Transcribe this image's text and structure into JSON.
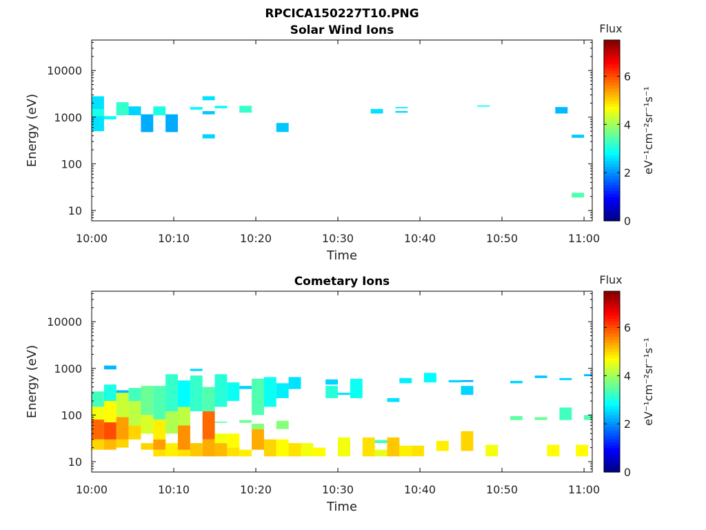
{
  "figure": {
    "title": "RPCICA150227T10.PNG"
  },
  "colorbar": {
    "title": "Flux",
    "label": "eV⁻¹cm⁻²sr⁻¹s⁻¹",
    "ticks": [
      "0",
      "2",
      "4",
      "6"
    ],
    "range": [
      0,
      7.5
    ],
    "colormap": "jet"
  },
  "chart_data": [
    {
      "type": "heatmap",
      "title": "Solar Wind Ions",
      "xlabel": "Time",
      "ylabel": "Energy (eV)",
      "x_ticks": [
        "10:00",
        "10:10",
        "10:20",
        "10:30",
        "10:40",
        "10:50",
        "11:00"
      ],
      "y_ticks": [
        "10",
        "100",
        "1000",
        "10000"
      ],
      "xlim_minutes": [
        0,
        61
      ],
      "ylim": [
        6,
        45000
      ],
      "y_scale": "log",
      "cells": [
        [
          0,
          1.5,
          500,
          2800,
          2.6
        ],
        [
          0,
          1.5,
          1050,
          1500,
          3.0
        ],
        [
          1.5,
          3,
          900,
          1050,
          2.8
        ],
        [
          3,
          4.5,
          1100,
          2100,
          3.2
        ],
        [
          4.5,
          6,
          1100,
          1700,
          2.5
        ],
        [
          6,
          7.5,
          480,
          1150,
          2.2
        ],
        [
          7.5,
          9,
          1100,
          1700,
          3.0
        ],
        [
          9,
          10.5,
          480,
          1150,
          2.2
        ],
        [
          12,
          13.5,
          1450,
          1650,
          2.8
        ],
        [
          13.5,
          15,
          2300,
          2800,
          2.6
        ],
        [
          13.5,
          15,
          1150,
          1350,
          2.4
        ],
        [
          13.5,
          15,
          350,
          430,
          2.5
        ],
        [
          15,
          16.5,
          1550,
          1750,
          2.8
        ],
        [
          18,
          19.5,
          1250,
          1750,
          3.2
        ],
        [
          22.5,
          24,
          480,
          750,
          2.4
        ],
        [
          34,
          35.5,
          1200,
          1500,
          2.6
        ],
        [
          37,
          38.5,
          1550,
          1650,
          2.7
        ],
        [
          37,
          38.5,
          1250,
          1350,
          2.5
        ],
        [
          47,
          48.5,
          1680,
          1780,
          2.8
        ],
        [
          56.5,
          58,
          1200,
          1650,
          2.3
        ],
        [
          58.5,
          60,
          360,
          420,
          2.4
        ],
        [
          58.5,
          60,
          19,
          24,
          3.4
        ]
      ]
    },
    {
      "type": "heatmap",
      "title": "Cometary Ions",
      "xlabel": "Time",
      "ylabel": "Energy (eV)",
      "x_ticks": [
        "10:00",
        "10:10",
        "10:20",
        "10:30",
        "10:40",
        "10:50",
        "11:00"
      ],
      "y_ticks": [
        "10",
        "100",
        "1000",
        "10000"
      ],
      "xlim_minutes": [
        0,
        61
      ],
      "ylim": [
        6,
        45000
      ],
      "y_scale": "log",
      "cells": [
        [
          0,
          1.5,
          18,
          30,
          5.0
        ],
        [
          0,
          1.5,
          30,
          80,
          5.8
        ],
        [
          0,
          1.5,
          80,
          150,
          4.6
        ],
        [
          0,
          1.5,
          150,
          320,
          3.3
        ],
        [
          1.5,
          3,
          18,
          30,
          5.2
        ],
        [
          1.5,
          3,
          30,
          70,
          6.0
        ],
        [
          1.5,
          3,
          70,
          200,
          4.7
        ],
        [
          1.5,
          3,
          200,
          450,
          3.0
        ],
        [
          1.5,
          3,
          950,
          1150,
          2.3
        ],
        [
          3,
          4.5,
          20,
          30,
          5.0
        ],
        [
          3,
          4.5,
          30,
          90,
          5.4
        ],
        [
          3,
          4.5,
          90,
          300,
          4.3
        ],
        [
          3,
          4.5,
          300,
          340,
          2.3
        ],
        [
          4.5,
          6,
          30,
          60,
          5.0
        ],
        [
          4.5,
          6,
          60,
          200,
          4.2
        ],
        [
          4.5,
          6,
          200,
          380,
          3.3
        ],
        [
          6,
          7.5,
          18,
          25,
          5.0
        ],
        [
          6,
          7.5,
          40,
          100,
          4.4
        ],
        [
          6,
          7.5,
          100,
          420,
          3.6
        ],
        [
          7.5,
          9,
          13,
          18,
          4.9
        ],
        [
          7.5,
          9,
          18,
          30,
          5.4
        ],
        [
          7.5,
          9,
          30,
          80,
          4.8
        ],
        [
          7.5,
          9,
          80,
          420,
          3.4
        ],
        [
          9,
          10.5,
          13,
          25,
          4.8
        ],
        [
          9,
          10.5,
          40,
          120,
          4.1
        ],
        [
          9,
          10.5,
          120,
          750,
          3.2
        ],
        [
          10.5,
          12,
          13,
          18,
          4.9
        ],
        [
          10.5,
          12,
          18,
          60,
          5.5
        ],
        [
          10.5,
          12,
          60,
          150,
          4.2
        ],
        [
          10.5,
          12,
          150,
          550,
          2.8
        ],
        [
          12,
          13.5,
          13,
          25,
          5.1
        ],
        [
          12,
          13.5,
          120,
          700,
          3.2
        ],
        [
          12,
          13.5,
          880,
          980,
          2.5
        ],
        [
          13.5,
          15,
          13,
          30,
          5.3
        ],
        [
          13.5,
          15,
          30,
          120,
          5.8
        ],
        [
          13.5,
          15,
          120,
          400,
          3.4
        ],
        [
          15,
          16.5,
          13,
          25,
          5.2
        ],
        [
          15,
          16.5,
          25,
          40,
          4.6
        ],
        [
          15,
          16.5,
          68,
          72,
          3.5
        ],
        [
          15,
          16.5,
          150,
          750,
          3.1
        ],
        [
          16.5,
          18,
          13,
          20,
          4.9
        ],
        [
          16.5,
          18,
          20,
          40,
          4.7
        ],
        [
          16.5,
          18,
          200,
          500,
          2.9
        ],
        [
          18,
          19.5,
          13,
          18,
          4.8
        ],
        [
          18,
          19.5,
          68,
          78,
          3.6
        ],
        [
          18,
          19.5,
          360,
          420,
          2.5
        ],
        [
          19.5,
          21,
          18,
          50,
          5.3
        ],
        [
          19.5,
          21,
          50,
          65,
          3.8
        ],
        [
          19.5,
          21,
          100,
          600,
          3.4
        ],
        [
          21,
          22.5,
          13,
          30,
          5.0
        ],
        [
          21,
          22.5,
          150,
          650,
          2.9
        ],
        [
          22.5,
          24,
          13,
          30,
          4.7
        ],
        [
          22.5,
          24,
          50,
          75,
          3.8
        ],
        [
          22.5,
          24,
          230,
          480,
          2.7
        ],
        [
          24,
          25.5,
          13,
          25,
          4.9
        ],
        [
          24,
          25.5,
          360,
          650,
          2.6
        ],
        [
          25.5,
          27,
          13,
          25,
          4.6
        ],
        [
          27,
          28.5,
          13,
          20,
          4.7
        ],
        [
          28.5,
          30,
          230,
          420,
          3.1
        ],
        [
          28.5,
          30,
          450,
          580,
          2.5
        ],
        [
          30,
          31.5,
          13,
          33,
          4.6
        ],
        [
          30,
          31.5,
          270,
          300,
          2.6
        ],
        [
          31.5,
          33,
          230,
          600,
          2.9
        ],
        [
          33,
          34.5,
          13,
          33,
          4.9
        ],
        [
          34.5,
          36,
          13,
          18,
          4.5
        ],
        [
          34.5,
          36,
          25,
          29,
          3.3
        ],
        [
          36,
          37.5,
          13,
          33,
          5.1
        ],
        [
          36,
          37.5,
          190,
          230,
          2.6
        ],
        [
          37.5,
          39,
          13,
          22,
          4.8
        ],
        [
          37.5,
          39,
          480,
          620,
          2.7
        ],
        [
          39,
          40.5,
          13,
          22,
          4.9
        ],
        [
          40.5,
          42,
          500,
          800,
          2.8
        ],
        [
          42,
          43.5,
          17,
          28,
          4.8
        ],
        [
          43.5,
          45,
          500,
          560,
          2.5
        ],
        [
          45,
          46.5,
          17,
          45,
          5.0
        ],
        [
          45,
          46.5,
          270,
          420,
          2.5
        ],
        [
          45,
          46.5,
          510,
          560,
          2.2
        ],
        [
          48,
          49.5,
          13,
          23,
          4.6
        ],
        [
          51,
          52.5,
          78,
          95,
          3.5
        ],
        [
          51,
          52.5,
          480,
          540,
          2.5
        ],
        [
          54,
          55.5,
          78,
          90,
          3.6
        ],
        [
          54,
          55.5,
          620,
          700,
          2.4
        ],
        [
          55.5,
          57,
          13,
          23,
          4.7
        ],
        [
          57,
          58.5,
          78,
          145,
          3.3
        ],
        [
          57,
          58.5,
          560,
          620,
          2.5
        ],
        [
          59,
          60.5,
          13,
          23,
          4.7
        ],
        [
          60,
          61,
          78,
          100,
          3.4
        ],
        [
          60,
          61,
          680,
          750,
          2.3
        ]
      ]
    }
  ]
}
